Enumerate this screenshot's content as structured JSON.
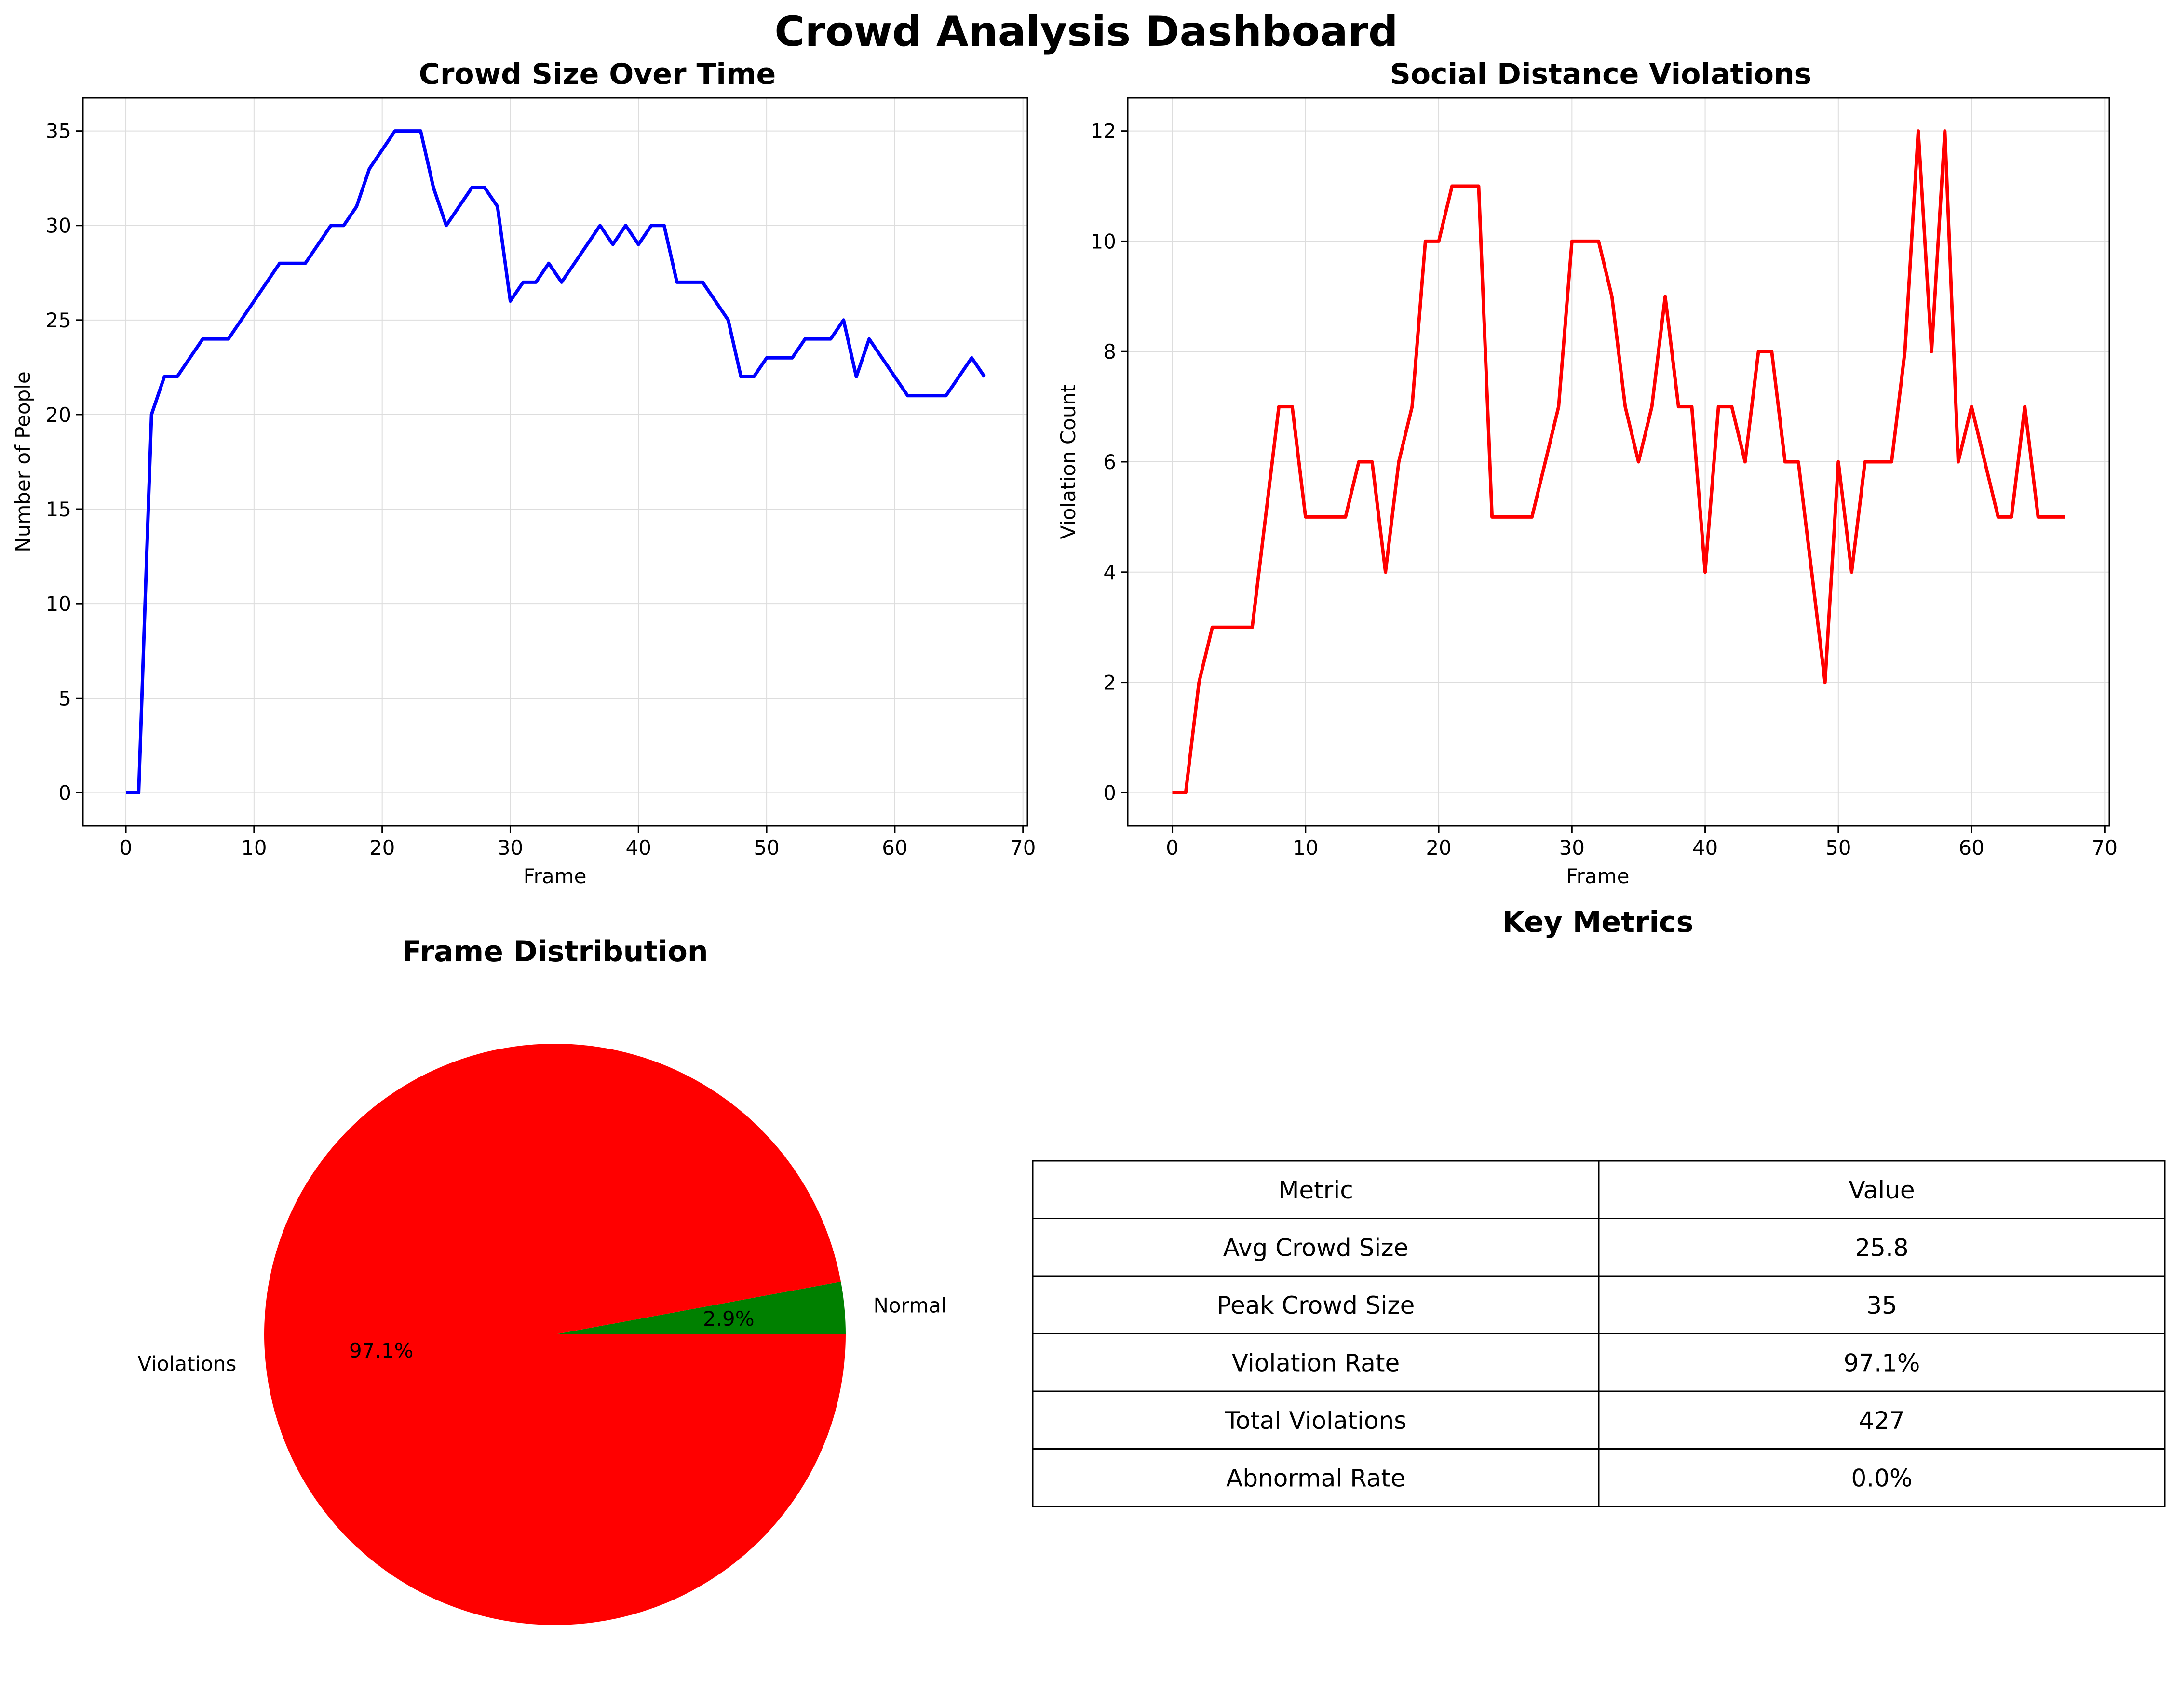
{
  "page": {
    "title": "Crowd Analysis Dashboard"
  },
  "chart_data": [
    {
      "type": "line",
      "title": "Crowd Size Over Time",
      "xlabel": "Frame",
      "ylabel": "Number of People",
      "xlim": [
        -3.35,
        70.35
      ],
      "ylim": [
        -1.75,
        36.75
      ],
      "xticks": [
        0,
        10,
        20,
        30,
        40,
        50,
        60,
        70
      ],
      "yticks": [
        0,
        5,
        10,
        15,
        20,
        25,
        30,
        35
      ],
      "grid": true,
      "color": "#0000ff",
      "x_start": 0,
      "values": [
        0,
        0,
        20,
        22,
        22,
        23,
        24,
        24,
        24,
        25,
        26,
        27,
        28,
        28,
        28,
        29,
        30,
        30,
        31,
        33,
        34,
        35,
        35,
        35,
        32,
        30,
        31,
        32,
        32,
        31,
        26,
        27,
        27,
        28,
        27,
        28,
        29,
        30,
        29,
        30,
        29,
        30,
        30,
        27,
        27,
        27,
        26,
        25,
        22,
        22,
        23,
        23,
        23,
        24,
        24,
        24,
        25,
        22,
        24,
        23,
        22,
        21,
        21,
        21,
        21,
        22,
        23,
        22
      ]
    },
    {
      "type": "line",
      "title": "Social Distance Violations",
      "xlabel": "Frame",
      "ylabel": "Violation Count",
      "xlim": [
        -3.35,
        70.35
      ],
      "ylim": [
        -0.6,
        12.6
      ],
      "xticks": [
        0,
        10,
        20,
        30,
        40,
        50,
        60,
        70
      ],
      "yticks": [
        0,
        2,
        4,
        6,
        8,
        10,
        12
      ],
      "grid": true,
      "color": "#ff0000",
      "x_start": 0,
      "values": [
        0,
        0,
        2,
        3,
        3,
        3,
        3,
        5,
        7,
        7,
        5,
        5,
        5,
        5,
        6,
        6,
        4,
        6,
        7,
        10,
        10,
        11,
        11,
        11,
        5,
        5,
        5,
        5,
        6,
        7,
        10,
        10,
        10,
        9,
        7,
        6,
        7,
        9,
        7,
        7,
        4,
        7,
        7,
        6,
        8,
        8,
        6,
        6,
        4,
        2,
        6,
        4,
        6,
        6,
        6,
        8,
        12,
        8,
        12,
        6,
        7,
        6,
        5,
        5,
        7,
        5,
        5,
        5
      ]
    },
    {
      "type": "pie",
      "title": "Frame Distribution",
      "slices": [
        {
          "label": "Normal",
          "value": 2.9,
          "pct_label": "2.9%",
          "color": "#008000"
        },
        {
          "label": "Violations",
          "value": 97.1,
          "pct_label": "97.1%",
          "color": "#ff0000"
        }
      ]
    },
    {
      "type": "table",
      "title": "Key Metrics",
      "columns": [
        "Metric",
        "Value"
      ],
      "rows": [
        [
          "Avg Crowd Size",
          "25.8"
        ],
        [
          "Peak Crowd Size",
          "35"
        ],
        [
          "Violation Rate",
          "97.1%"
        ],
        [
          "Total Violations",
          "427"
        ],
        [
          "Abnormal Rate",
          "0.0%"
        ]
      ]
    }
  ]
}
